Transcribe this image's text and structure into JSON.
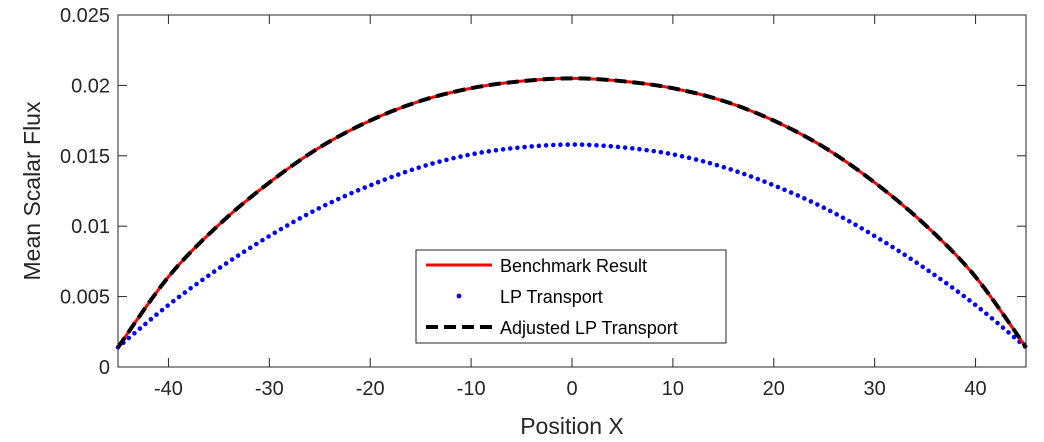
{
  "chart_data": {
    "type": "line",
    "xlabel": "Position X",
    "ylabel": "Mean Scalar Flux",
    "xlim": [
      -45,
      45
    ],
    "ylim": [
      0,
      0.025
    ],
    "x_ticks": [
      -40,
      -30,
      -20,
      -10,
      0,
      10,
      20,
      30,
      40
    ],
    "x_tick_labels": [
      "-40",
      "-30",
      "-20",
      "-10",
      "0",
      "10",
      "20",
      "30",
      "40"
    ],
    "y_ticks": [
      0,
      0.005,
      0.01,
      0.015,
      0.02,
      0.025
    ],
    "y_tick_labels": [
      "0",
      "0.005",
      "0.01",
      "0.015",
      "0.02",
      "0.025"
    ],
    "grid": false,
    "legend_position": "bottom-center",
    "x": [
      -45,
      -40,
      -35,
      -30,
      -25,
      -20,
      -15,
      -10,
      -5,
      0,
      5,
      10,
      15,
      20,
      25,
      30,
      35,
      40,
      45
    ],
    "series": [
      {
        "name": "Benchmark Result",
        "style": "solid",
        "color": "#ff0000",
        "values": [
          0.0014,
          0.0064,
          0.0101,
          0.0131,
          0.0156,
          0.0175,
          0.0189,
          0.0198,
          0.0203,
          0.0205,
          0.0203,
          0.0198,
          0.0189,
          0.0175,
          0.0156,
          0.0131,
          0.0101,
          0.0064,
          0.0014
        ]
      },
      {
        "name": "LP Transport",
        "style": "dotted",
        "color": "#0000ff",
        "values": [
          0.0014,
          0.0044,
          0.007,
          0.0093,
          0.0113,
          0.0129,
          0.0142,
          0.0151,
          0.0156,
          0.0158,
          0.0156,
          0.0151,
          0.0142,
          0.0129,
          0.0113,
          0.0093,
          0.007,
          0.0044,
          0.0014
        ]
      },
      {
        "name": "Adjusted LP Transport",
        "style": "dashed",
        "color": "#000000",
        "values": [
          0.0014,
          0.0064,
          0.0101,
          0.0131,
          0.0156,
          0.0175,
          0.0189,
          0.0198,
          0.0203,
          0.0205,
          0.0203,
          0.0198,
          0.0189,
          0.0175,
          0.0156,
          0.0131,
          0.0101,
          0.0064,
          0.0014
        ]
      }
    ]
  }
}
